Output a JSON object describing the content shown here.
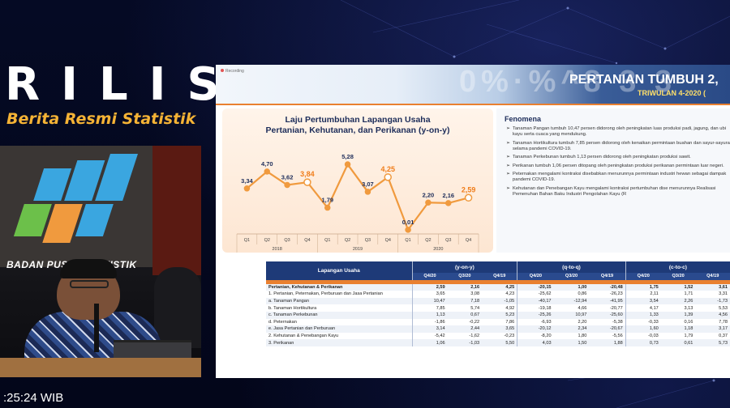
{
  "overlay": {
    "rilis": "RILIS",
    "subtitle": "Berita Resmi Statistik",
    "camera_logo_text": "BADAN PUSAT STATISTIK",
    "time": ":25:24 WIB"
  },
  "slide": {
    "recording_label": "Recording",
    "headline": "PERTANIAN TUMBUH 2,",
    "subhead": "TRIWULAN 4-2020 (",
    "chart_data": {
      "type": "line",
      "title": "Laju Pertumbuhan Lapangan Usaha Pertanian, Kehutanan, dan Perikanan (y-on-y)",
      "title_line1": "Laju Pertumbuhan Lapangan Usaha",
      "title_line2": "Pertanian, Kehutanan, dan Perikanan (y-on-y)",
      "categories": [
        "Q1",
        "Q2",
        "Q3",
        "Q4",
        "Q1",
        "Q2",
        "Q3",
        "Q4",
        "Q1",
        "Q2",
        "Q3",
        "Q4"
      ],
      "years": [
        "2018",
        "2019",
        "2020"
      ],
      "values": [
        3.34,
        4.7,
        3.62,
        3.84,
        1.79,
        5.28,
        3.07,
        4.25,
        0.01,
        2.2,
        2.16,
        2.59
      ],
      "labels": [
        "3,34",
        "4,70",
        "3,62",
        "3,84",
        "1,79",
        "5,28",
        "3,07",
        "4,25",
        "0,01",
        "2,20",
        "2,16",
        "2,59"
      ],
      "highlight_indices": [
        3,
        7,
        11
      ],
      "ylim": [
        0,
        6
      ],
      "colors": {
        "line": "#f09a3e",
        "highlight": "#f09a3e",
        "label": "#1d2d5a",
        "highlight_label": "#f07d1a"
      }
    },
    "fenomena": {
      "title": "Fenomena",
      "items": [
        "Tanaman Pangan tumbuh 10,47 persen didorong oleh peningkatan luas produksi padi, jagung, dan ubi kayu serta cuaca yang mendukung.",
        "Tanaman Hortikultura tumbuh 7,85 persen didorong oleh kenaikan permintaan buahan dan sayur-sayuran selama pandemi COVID-19.",
        "Tanaman Perkebunan tumbuh 1,13 persen didorong oleh peningkatan produksi sawit.",
        "Perikanan tumbuh 1,06 persen ditopang oleh peningkatan produksi perikanan permintaan luar negeri.",
        "Peternakan mengalami kontraksi disebabkan menurunnya permintaan industri hewan sebagai dampak pandemi COVID-19.",
        "Kehutanan dan Penebangan Kayu mengalami kontraksi pertumbuhan dise menurunnya Realisasi Pemenuhan Bahan Baku Industri Pengolahan Kayu (R"
      ]
    },
    "table": {
      "head_label": "Lapangan Usaha",
      "groups": [
        "(y-on-y)",
        "(q-to-q)",
        "(c-to-c)"
      ],
      "periods": [
        "Q4/20",
        "Q3/20",
        "Q4/19",
        "Q4/20",
        "Q3/20",
        "Q4/19",
        "Q4/20",
        "Q3/20",
        "Q4/19"
      ],
      "rows": [
        {
          "label": "Pertanian, Kehutanan & Perikanan",
          "bold": true,
          "v": [
            "2,59",
            "2,16",
            "4,25",
            "-20,15",
            "1,00",
            "-20,48",
            "1,75",
            "1,52",
            "3,61"
          ]
        },
        {
          "label": "1.  Pertanian, Peternakan, Perburuan dan Jasa Pertanian",
          "bold": false,
          "v": [
            "3,65",
            "3,08",
            "4,23",
            "-25,62",
            "0,86",
            "-26,23",
            "2,11",
            "1,71",
            "3,31"
          ]
        },
        {
          "label": "a.  Tanaman Pangan",
          "bold": false,
          "v": [
            "10,47",
            "7,18",
            "-1,05",
            "-40,17",
            "-12,94",
            "-41,95",
            "3,54",
            "2,26",
            "-1,73"
          ]
        },
        {
          "label": "b.  Tanaman Hortikultura",
          "bold": false,
          "v": [
            "7,85",
            "5,74",
            "4,92",
            "-19,18",
            "4,66",
            "-20,77",
            "4,17",
            "3,13",
            "5,53"
          ]
        },
        {
          "label": "c.  Tanaman Perkebunan",
          "bold": false,
          "v": [
            "1,13",
            "0,67",
            "5,23",
            "-25,26",
            "10,97",
            "-25,60",
            "1,33",
            "1,39",
            "4,56"
          ]
        },
        {
          "label": "d.  Peternakan",
          "bold": false,
          "v": [
            "-1,86",
            "-0,22",
            "7,86",
            "-6,93",
            "2,20",
            "-5,38",
            "-0,33",
            "0,16",
            "7,78"
          ]
        },
        {
          "label": "e.  Jasa Pertanian dan Perburuan",
          "bold": false,
          "v": [
            "3,14",
            "2,44",
            "3,65",
            "-20,12",
            "2,34",
            "-20,67",
            "1,60",
            "1,18",
            "3,17"
          ]
        },
        {
          "label": "2.  Kehutanan & Penebangan Kayu",
          "bold": false,
          "v": [
            "-5,42",
            "-1,62",
            "-0,23",
            "-8,20",
            "1,80",
            "-5,56",
            "-0,03",
            "1,79",
            "0,37"
          ]
        },
        {
          "label": "3.  Perikanan",
          "bold": false,
          "v": [
            "1,06",
            "-1,03",
            "5,50",
            "4,03",
            "1,50",
            "1,88",
            "0,73",
            "0,61",
            "5,73"
          ]
        }
      ]
    }
  }
}
